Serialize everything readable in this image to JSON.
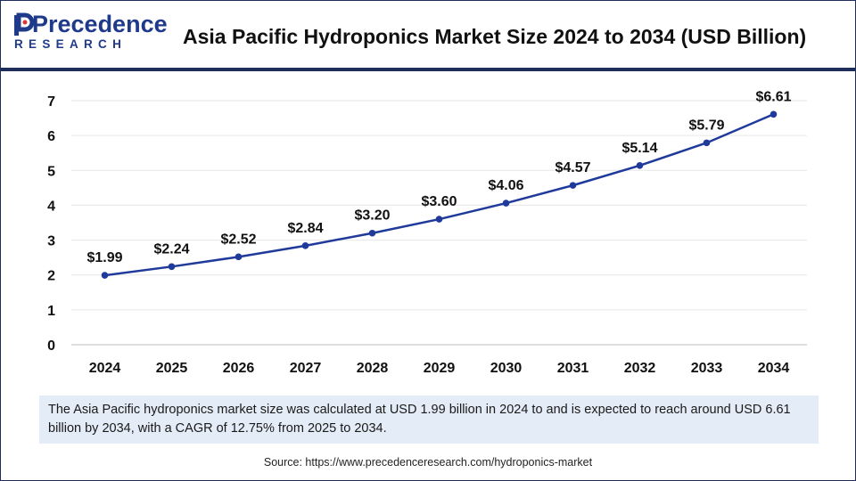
{
  "brand": {
    "logo_word": "Precedence",
    "logo_sub": "RESEARCH",
    "color": "#1f3a8a"
  },
  "title": "Asia Pacific Hydroponics Market Size 2024 to 2034 (USD Billion)",
  "chart_data": {
    "type": "line",
    "categories": [
      "2024",
      "2025",
      "2026",
      "2027",
      "2028",
      "2029",
      "2030",
      "2031",
      "2032",
      "2033",
      "2034"
    ],
    "series": [
      {
        "values": [
          1.99,
          2.24,
          2.52,
          2.84,
          3.2,
          3.6,
          4.06,
          4.57,
          5.14,
          5.79,
          6.61
        ],
        "labels": [
          "$1.99",
          "$2.24",
          "$2.52",
          "$2.84",
          "$3.20",
          "$3.60",
          "$4.06",
          "$4.57",
          "$5.14",
          "$5.79",
          "$6.61"
        ],
        "color": "#1f3a9a"
      }
    ],
    "yticks": [
      "0",
      "1",
      "2",
      "3",
      "4",
      "5",
      "6",
      "7"
    ],
    "ylim": [
      0,
      7
    ],
    "grid": true,
    "xlabel": "",
    "ylabel": ""
  },
  "note": "The Asia Pacific hydroponics market size was calculated at USD 1.99 billion in 2024 to and is expected to reach around USD 6.61 billion by 2034, with a CAGR of 12.75% from 2025 to 2034.",
  "source": "Source: https://www.precedenceresearch.com/hydroponics-market"
}
